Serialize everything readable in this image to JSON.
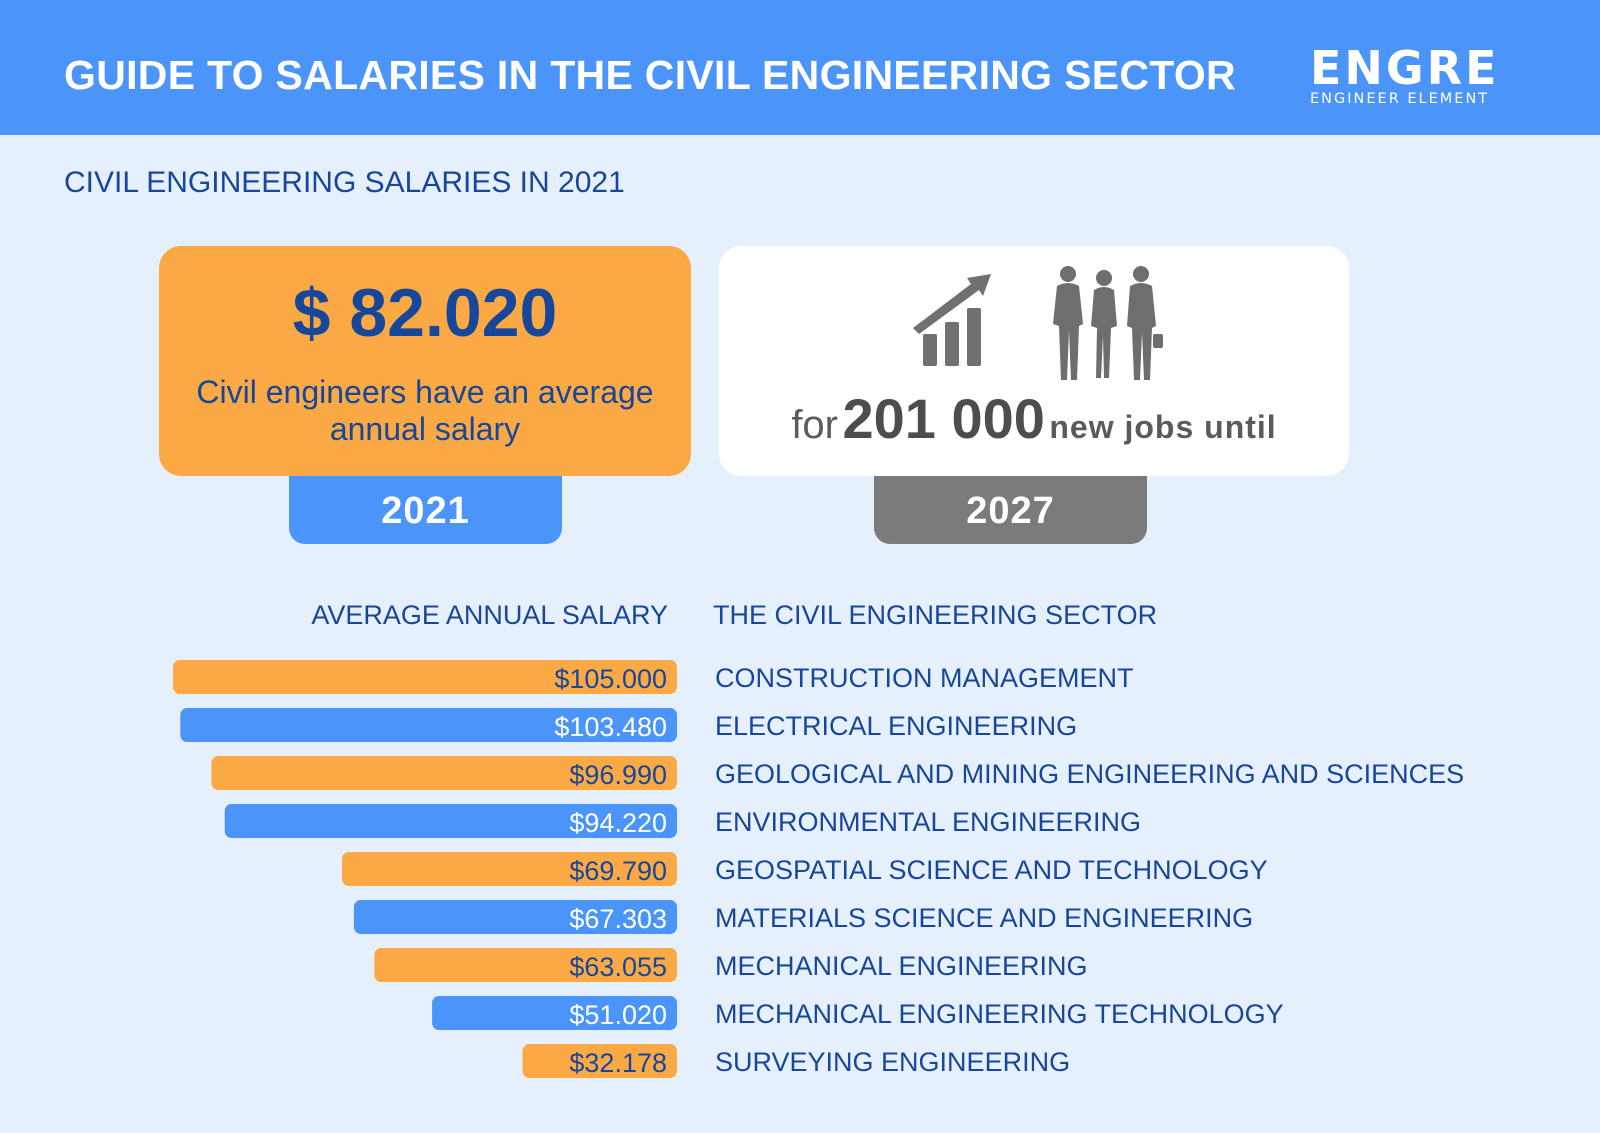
{
  "header": {
    "title": "GUIDE TO SALARIES IN THE CIVIL ENGINEERING SECTOR",
    "logo_main": "ENGRE",
    "logo_sub": "ENGINEER ELEMENT"
  },
  "subtitle": "CIVIL ENGINEERING SALARIES IN 2021",
  "stat_salary": {
    "value": "$ 82.020",
    "description": "Civil engineers have an average annual salary",
    "year": "2021"
  },
  "stat_jobs": {
    "prefix": "for",
    "number": "201 000",
    "suffix": "new jobs until",
    "year": "2027"
  },
  "colors": {
    "orange": "#fba944",
    "blue": "#4b94f9",
    "gray": "#7b7b7b",
    "navy": "#17479a"
  },
  "chart_data": {
    "type": "bar",
    "orientation": "horizontal",
    "xlabel": "AVERAGE ANNUAL SALARY",
    "ylabel": "THE CIVIL ENGINEERING SECTOR",
    "categories": [
      "CONSTRUCTION MANAGEMENT",
      "ELECTRICAL ENGINEERING",
      "GEOLOGICAL AND MINING ENGINEERING AND SCIENCES",
      "ENVIRONMENTAL ENGINEERING",
      "GEOSPATIAL SCIENCE AND TECHNOLOGY",
      "MATERIALS SCIENCE AND ENGINEERING",
      "MECHANICAL ENGINEERING",
      "MECHANICAL ENGINEERING TECHNOLOGY",
      "SURVEYING ENGINEERING"
    ],
    "values": [
      105000,
      103480,
      96990,
      94220,
      69790,
      67303,
      63055,
      51020,
      32178
    ],
    "labels": [
      "$105.000",
      "$103.480",
      "$96.990",
      "$94.220",
      "$69.790",
      "$67.303",
      "$63.055",
      "$51.020",
      "$32.178"
    ],
    "bar_colors": [
      "#fba944",
      "#4b94f9",
      "#fba944",
      "#4b94f9",
      "#fba944",
      "#4b94f9",
      "#fba944",
      "#4b94f9",
      "#fba944"
    ],
    "label_colors": [
      "#17479a",
      "#ffffff",
      "#17479a",
      "#ffffff",
      "#17479a",
      "#ffffff",
      "#17479a",
      "#ffffff",
      "#17479a"
    ],
    "xlim": [
      0,
      105000
    ],
    "legend": "none",
    "grid": false
  }
}
